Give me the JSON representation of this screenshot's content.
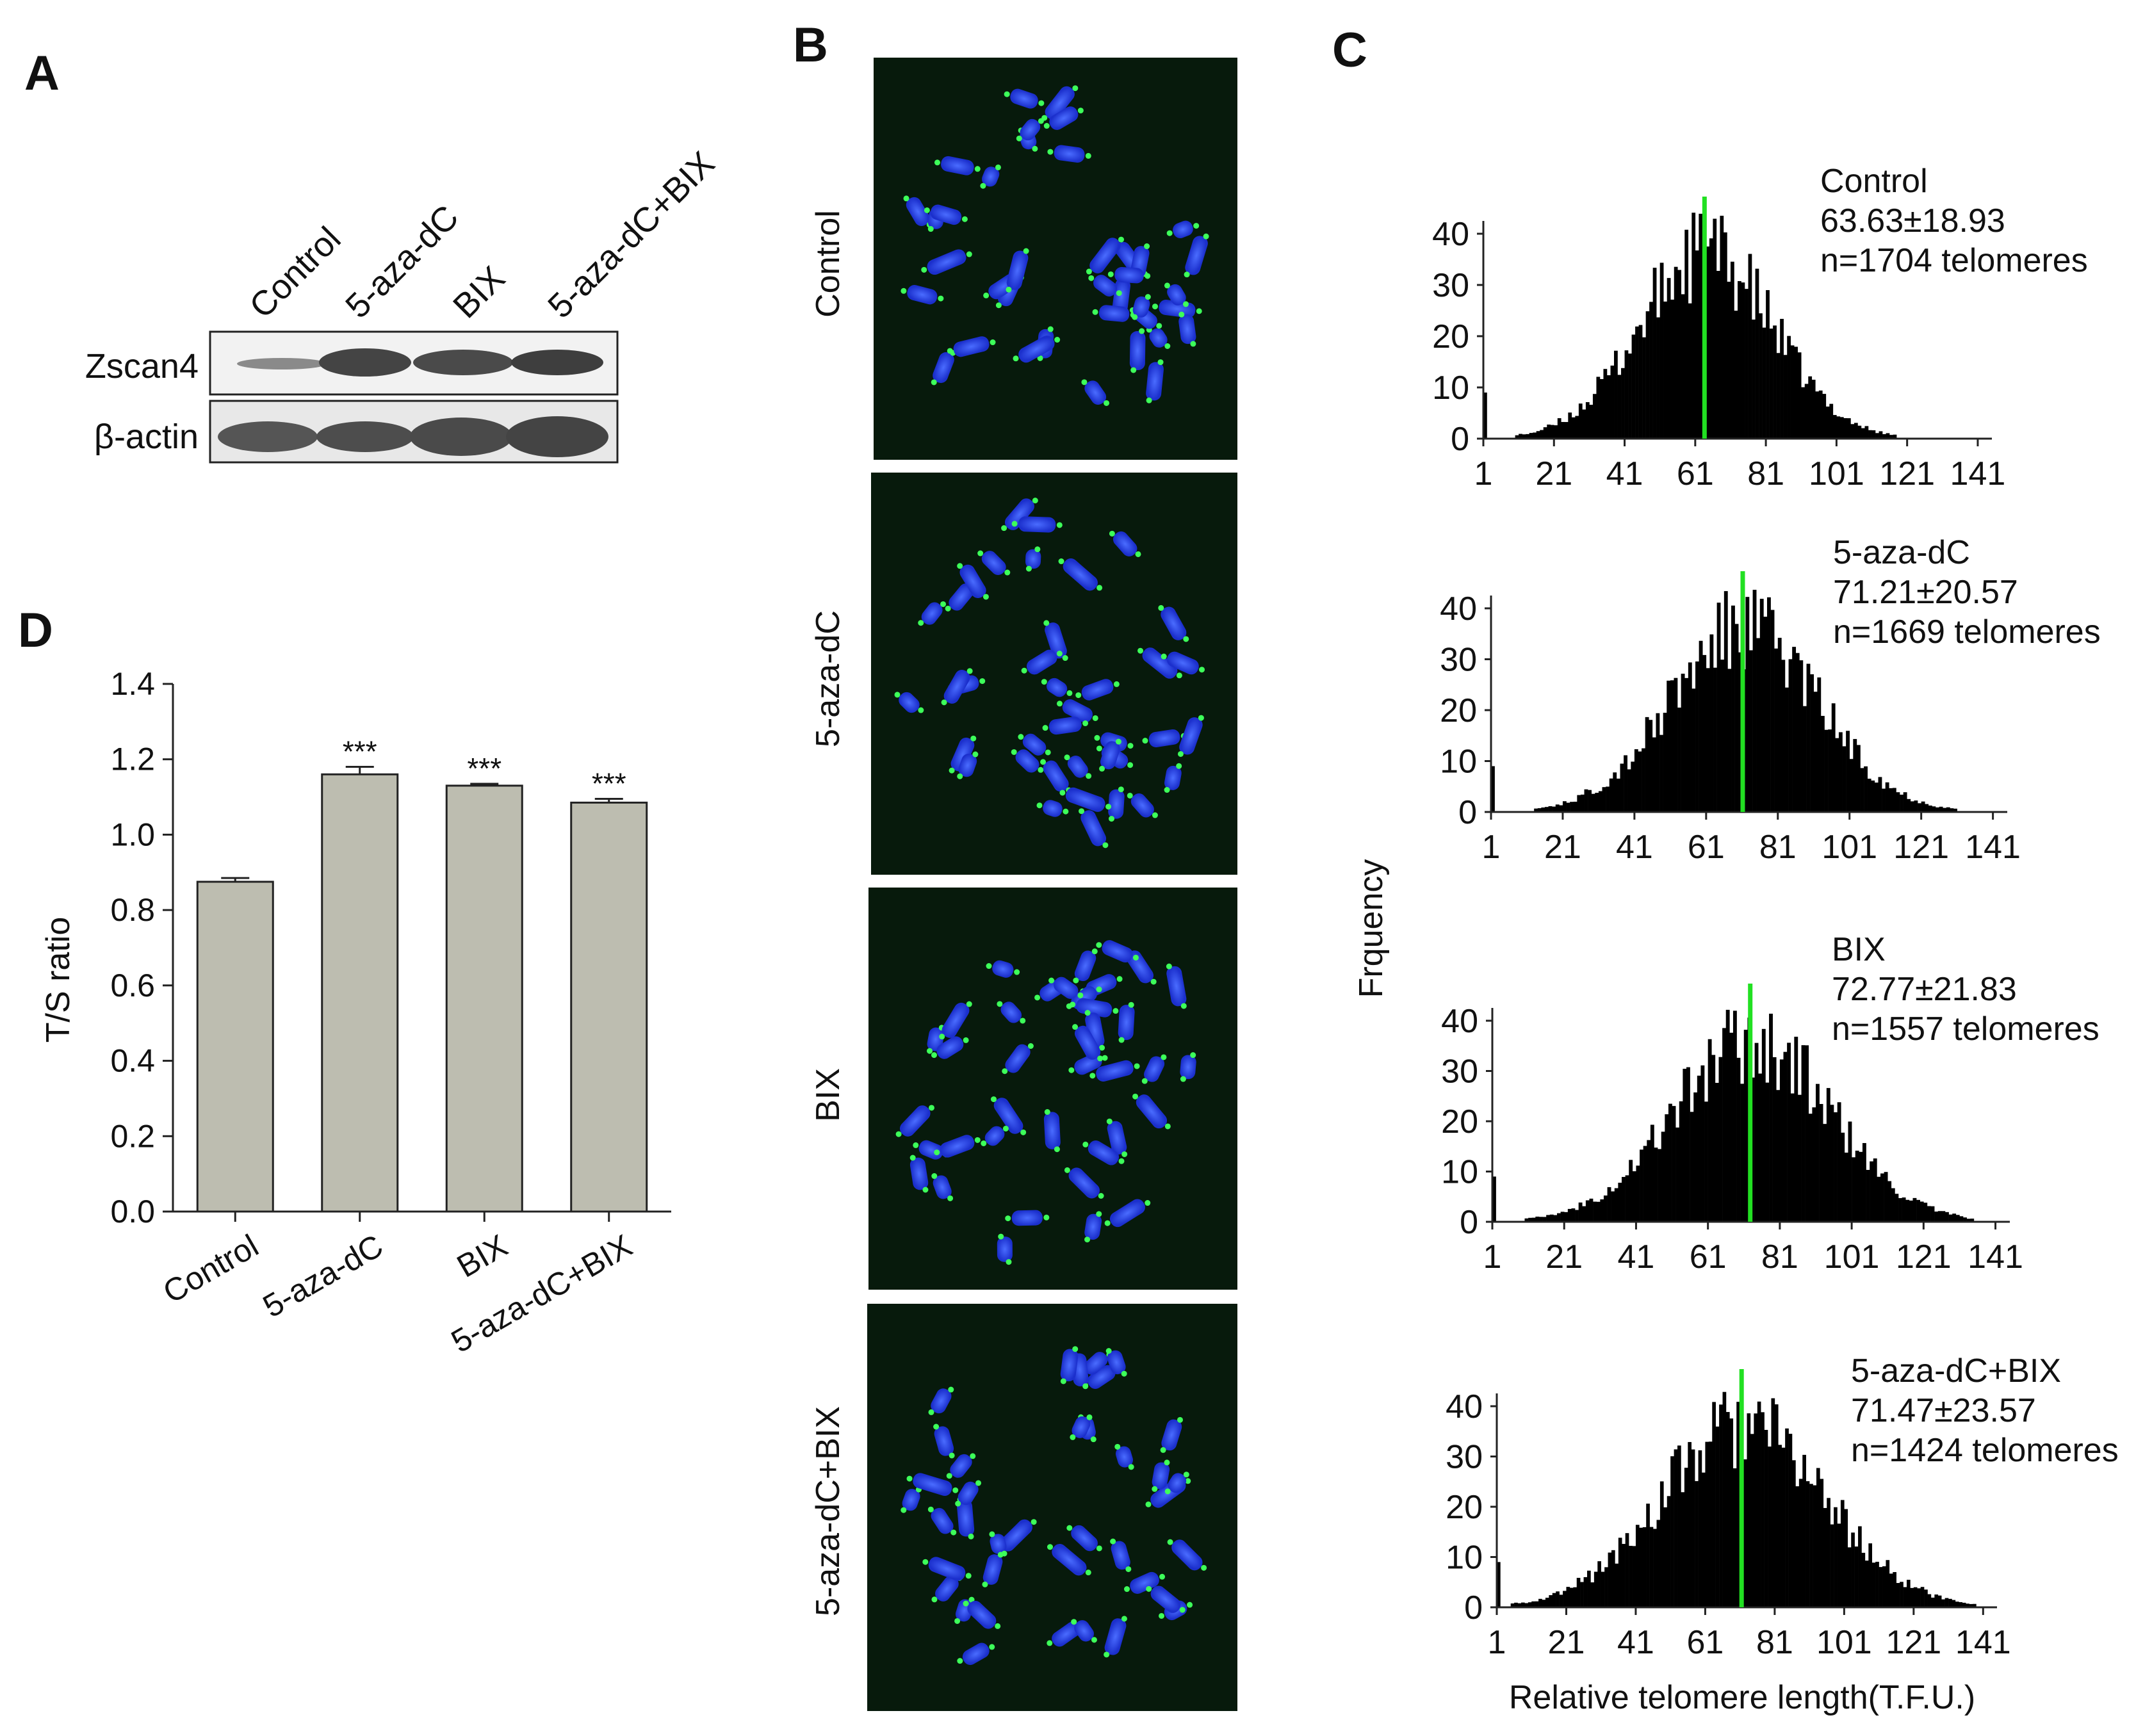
{
  "panels": {
    "A": "A",
    "B": "B",
    "C": "C",
    "D": "D"
  },
  "western_blot": {
    "lanes": [
      "Control",
      "5-aza-dC",
      "BIX",
      "5-aza-dC+BIX"
    ],
    "rows": [
      "Zscan4",
      "β-actin"
    ]
  },
  "fish_images": {
    "rows": [
      "Control",
      "5-aza-dC",
      "BIX",
      "5-aza-dC+BIX"
    ]
  },
  "histograms": {
    "ylabel": "Frquency",
    "xlabel": "Relative telomere length(T.F.U.)",
    "yticks": [
      "0",
      "10",
      "20",
      "30",
      "40"
    ],
    "xticks": [
      "1",
      "21",
      "41",
      "61",
      "81",
      "101",
      "121",
      "141"
    ],
    "mean_line_color": "#22e022",
    "items": [
      {
        "name": "Control",
        "stat": "63.63±18.93",
        "n": "n=1704 telomeres",
        "mean": 63.63,
        "sd": 18.93
      },
      {
        "name": "5-aza-dC",
        "stat": "71.21±20.57",
        "n": "n=1669 telomeres",
        "mean": 71.21,
        "sd": 20.57
      },
      {
        "name": "BIX",
        "stat": "72.77±21.83",
        "n": "n=1557 telomeres",
        "mean": 72.77,
        "sd": 21.83
      },
      {
        "name": "5-aza-dC+BIX",
        "stat": "71.47±23.57",
        "n": "n=1424 telomeres",
        "mean": 71.47,
        "sd": 23.57
      }
    ]
  },
  "chart_data": {
    "type": "bar",
    "title": "",
    "xlabel": "",
    "ylabel": "T/S ratio",
    "categories": [
      "Control",
      "5-aza-dC",
      "BIX",
      "5-aza-dC+BIX"
    ],
    "values": [
      0.875,
      1.16,
      1.13,
      1.085
    ],
    "errors": [
      0.01,
      0.02,
      0.005,
      0.01
    ],
    "significance": [
      "",
      "***",
      "***",
      "***"
    ],
    "ylim": [
      0.0,
      1.4
    ],
    "yticks": [
      "0.0",
      "0.2",
      "0.4",
      "0.6",
      "0.8",
      "1.0",
      "1.2",
      "1.4"
    ],
    "bar_color": "#bdbdb0"
  }
}
